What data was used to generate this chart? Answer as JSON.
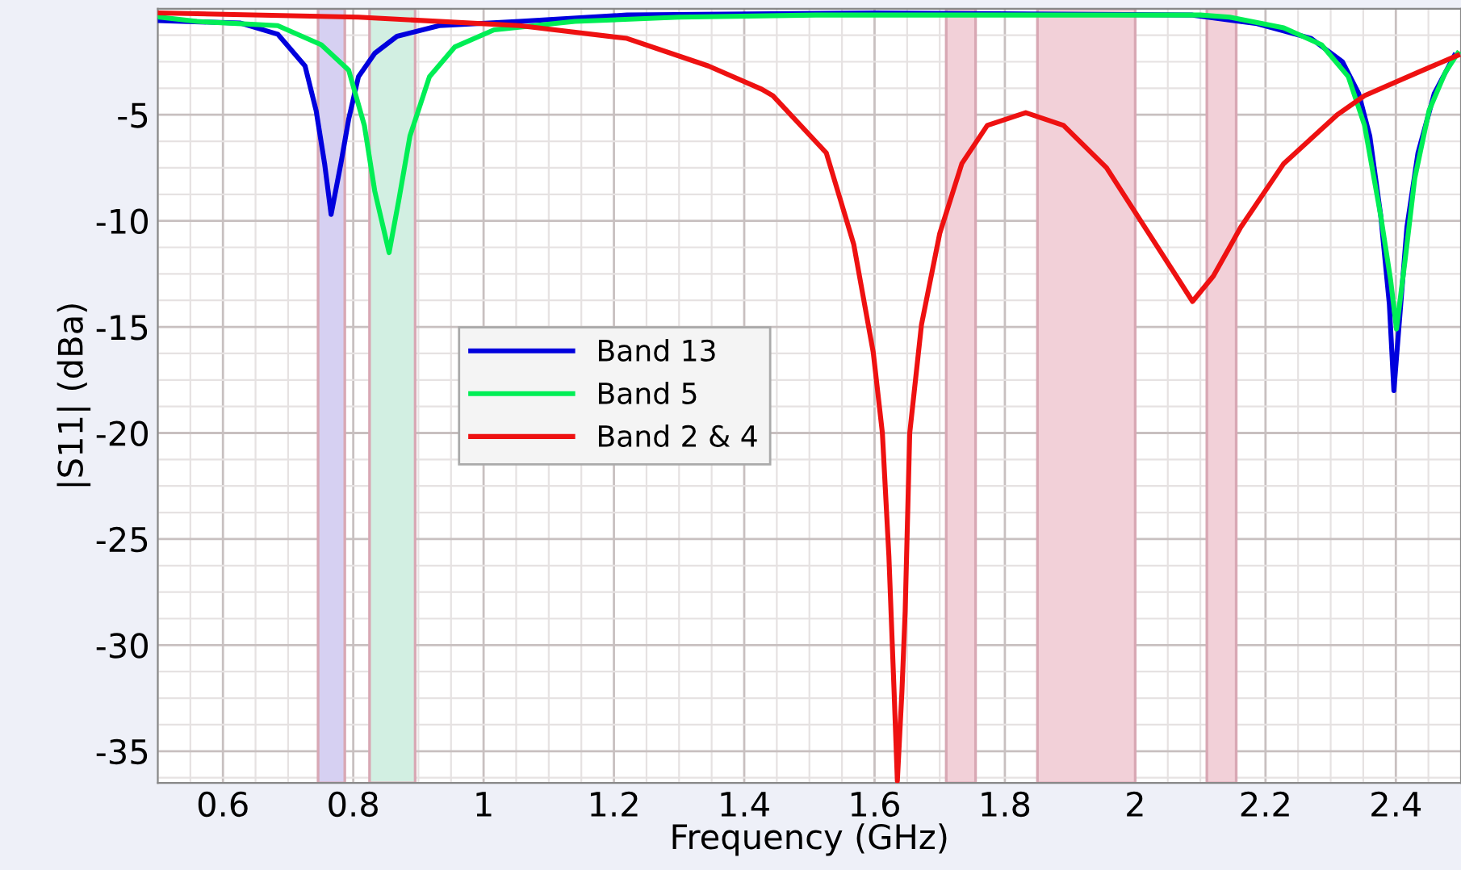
{
  "chart_data": {
    "type": "line",
    "xlabel": "Frequency (GHz)",
    "ylabel": "|S11| (dBa)",
    "xlim": [
      0.5,
      2.5
    ],
    "xticks": [
      0.6,
      0.8,
      1,
      1.2,
      1.4,
      1.6,
      1.8,
      2,
      2.2,
      2.4
    ],
    "ylim": [
      -36.5,
      0
    ],
    "yticks": [
      -35,
      -30,
      -25,
      -20,
      -15,
      -10,
      -5
    ],
    "grid": true,
    "legend": "center left",
    "marker": "none",
    "line_style": "solid",
    "bands": [
      {
        "axis": "x",
        "from": 0.746,
        "to": 0.787,
        "color": "#d6d0f2"
      },
      {
        "axis": "x",
        "from": 0.825,
        "to": 0.895,
        "color": "#d2efe2"
      },
      {
        "axis": "x",
        "from": 1.71,
        "to": 1.755,
        "color": "#f2d0d8"
      },
      {
        "axis": "x",
        "from": 1.85,
        "to": 2.0,
        "color": "#f2d0d8"
      },
      {
        "axis": "x",
        "from": 2.11,
        "to": 2.155,
        "color": "#f2d0d8"
      }
    ],
    "series": [
      {
        "name": "Band 13",
        "color": "#0000dd",
        "x": [
          0.503,
          0.627,
          0.684,
          0.726,
          0.743,
          0.756,
          0.766,
          0.781,
          0.793,
          0.808,
          0.833,
          0.867,
          0.932,
          1.055,
          1.22,
          1.6,
          2.088,
          2.187,
          2.27,
          2.318,
          2.343,
          2.36,
          2.377,
          2.39,
          2.397,
          2.405,
          2.417,
          2.434,
          2.459,
          2.49
        ],
        "values": [
          -0.56,
          -0.68,
          -1.2,
          -2.7,
          -4.8,
          -7.3,
          -9.7,
          -7.3,
          -5.2,
          -3.2,
          -2.1,
          -1.3,
          -0.8,
          -0.6,
          -0.3,
          -0.2,
          -0.3,
          -0.7,
          -1.4,
          -2.5,
          -4.0,
          -6.0,
          -9.8,
          -13.9,
          -18.0,
          -14.9,
          -10.3,
          -6.8,
          -4.0,
          -2.2
        ]
      },
      {
        "name": "Band 5",
        "color": "#00ee55",
        "x": [
          0.503,
          0.56,
          0.684,
          0.751,
          0.793,
          0.817,
          0.833,
          0.855,
          0.87,
          0.887,
          0.917,
          0.956,
          1.016,
          1.14,
          1.3,
          1.51,
          2.1,
          2.145,
          2.228,
          2.286,
          2.327,
          2.352,
          2.377,
          2.392,
          2.401,
          2.414,
          2.429,
          2.451,
          2.476,
          2.495
        ],
        "values": [
          -0.4,
          -0.6,
          -0.8,
          -1.7,
          -2.9,
          -5.5,
          -8.6,
          -11.5,
          -9.0,
          -6.0,
          -3.2,
          -1.8,
          -1.0,
          -0.6,
          -0.4,
          -0.3,
          -0.3,
          -0.4,
          -0.9,
          -1.7,
          -3.2,
          -5.5,
          -9.8,
          -12.8,
          -15.1,
          -11.9,
          -8.0,
          -4.8,
          -3.0,
          -2.1
        ]
      },
      {
        "name": "Band 2 & 4",
        "color": "#ee1111",
        "x": [
          0.503,
          0.808,
          1.055,
          1.22,
          1.345,
          1.427,
          1.444,
          1.526,
          1.568,
          1.598,
          1.612,
          1.622,
          1.63,
          1.635,
          1.642,
          1.647,
          1.654,
          1.672,
          1.7,
          1.734,
          1.773,
          1.832,
          1.89,
          1.956,
          2.021,
          2.063,
          2.088,
          2.12,
          2.162,
          2.228,
          2.31,
          2.352,
          2.434,
          2.495
        ],
        "values": [
          -0.2,
          -0.4,
          -0.8,
          -1.4,
          -2.7,
          -3.8,
          -4.1,
          -6.8,
          -11.1,
          -16.2,
          -20.0,
          -25.8,
          -32.2,
          -36.4,
          -32.2,
          -28.4,
          -20.0,
          -14.9,
          -10.6,
          -7.3,
          -5.5,
          -4.9,
          -5.5,
          -7.5,
          -10.6,
          -12.6,
          -13.8,
          -12.6,
          -10.3,
          -7.3,
          -5.0,
          -4.1,
          -3.0,
          -2.2
        ]
      }
    ]
  }
}
